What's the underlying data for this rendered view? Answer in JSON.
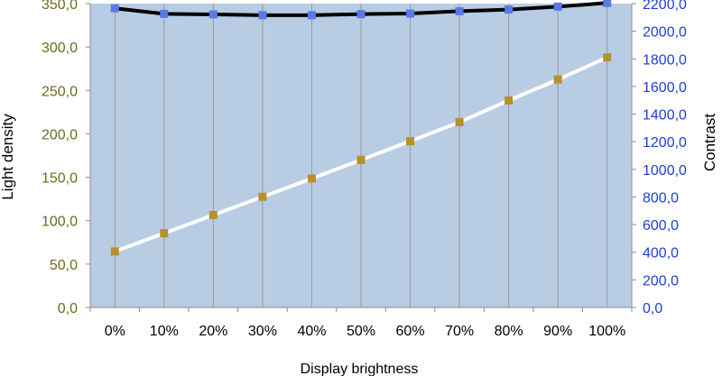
{
  "chart_data": {
    "type": "line",
    "title": "",
    "xlabel": "Display brightness",
    "ylabel_left": "Light density",
    "ylabel_right": "Contrast",
    "categories": [
      "0%",
      "10%",
      "20%",
      "30%",
      "40%",
      "50%",
      "60%",
      "70%",
      "80%",
      "90%",
      "100%"
    ],
    "y_left": {
      "min": 0,
      "max": 350,
      "step": 50,
      "ticks": [
        "0,0",
        "50,0",
        "100,0",
        "150,0",
        "200,0",
        "250,0",
        "300,0",
        "350,0"
      ]
    },
    "y_right": {
      "min": 0,
      "max": 2200,
      "step": 200,
      "ticks": [
        "0,0",
        "200,0",
        "400,0",
        "600,0",
        "800,0",
        "1000,0",
        "1200,0",
        "1400,0",
        "1600,0",
        "1800,0",
        "2000,0",
        "2200,0"
      ]
    },
    "series": [
      {
        "axis": "left",
        "values": [
          64.5,
          85.5,
          106.5,
          127.5,
          148.5,
          170.0,
          191.5,
          213.5,
          238.5,
          262.5,
          288.0
        ],
        "line_color": "#ffffff",
        "marker_color": "#b8902a"
      },
      {
        "axis": "right",
        "values": [
          2166,
          2126,
          2122,
          2116,
          2116,
          2124,
          2128,
          2145,
          2157,
          2178,
          2205
        ],
        "line_color": "#000000",
        "marker_color": "#5a78e6"
      }
    ],
    "grid": {
      "vertical": true,
      "horizontal": false
    },
    "plot_background": "#b8cce4",
    "left_axis_color": "#6b6b1e",
    "right_axis_color": "#1f3fd6",
    "legend": "none"
  }
}
